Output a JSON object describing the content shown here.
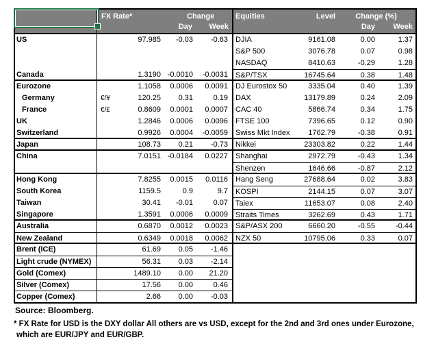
{
  "colors": {
    "header_bg": "#7f7f7f",
    "header_text": "#ffffff",
    "selection_green": "#217346",
    "grid_black": "#000000"
  },
  "fx_table": {
    "headers": {
      "rate": "FX Rate*",
      "change": "Change",
      "day": "Day",
      "week": "Week"
    },
    "groups": [
      [
        {
          "name": "US",
          "rate": "97.985",
          "day": "-0.03",
          "week": "-0.63"
        },
        {},
        {},
        {
          "name": "Canada",
          "rate": "1.3190",
          "day": "-0.0010",
          "week": "-0.0031"
        }
      ],
      [
        {
          "name": "Eurozone",
          "rate": "1.1058",
          "day": "0.0006",
          "week": "0.0091"
        },
        {
          "name": "Germany",
          "indent": true,
          "symbol": "€/¥",
          "rate": "120.25",
          "day": "0.31",
          "week": "0.19"
        },
        {
          "name": "France",
          "indent": true,
          "symbol": "€/£",
          "rate": "0.8609",
          "day": "0.0001",
          "week": "0.0007"
        },
        {
          "name": "UK",
          "rate": "1.2846",
          "day": "0.0006",
          "week": "0.0096"
        },
        {
          "name": "Switzerland",
          "rate": "0.9926",
          "day": "0.0004",
          "week": "-0.0059"
        }
      ],
      [
        {
          "name": "Japan",
          "rate": "108.73",
          "day": "0.21",
          "week": "-0.73"
        }
      ],
      [
        {
          "name": "China",
          "rate": "7.0151",
          "day": "-0.0184",
          "week": "0.0227"
        },
        {}
      ],
      [
        {
          "name": "Hong Kong",
          "rate": "7.8255",
          "day": "0.0015",
          "week": "0.0116"
        },
        {
          "name": "South Korea",
          "rate": "1159.5",
          "day": "0.9",
          "week": "9.7"
        },
        {
          "name": "Taiwan",
          "rate": "30.41",
          "day": "-0.01",
          "week": "0.07"
        },
        {
          "name": "Singapore",
          "rate": "1.3591",
          "day": "0.0006",
          "week": "0.0009"
        }
      ],
      [
        {
          "name": "Australia",
          "rate": "0.6870",
          "day": "0.0012",
          "week": "0.0023"
        },
        {
          "name": "New Zealand",
          "divider": true,
          "rate": "0.6349",
          "day": "0.0018",
          "week": "0.0062"
        }
      ],
      [
        {
          "name": "Brent (ICE)",
          "rate": "61.69",
          "day": "0.05",
          "week": "-1.46"
        },
        {
          "name": "Light crude (NYMEX)",
          "divider": true,
          "rate": "56.31",
          "day": "0.03",
          "week": "-2.14"
        },
        {
          "name": "Gold (Comex)",
          "divider": true,
          "rate": "1489.10",
          "day": "0.00",
          "week": "21.20"
        },
        {
          "name": "Silver (Comex)",
          "divider": true,
          "rate": "17.56",
          "day": "0.00",
          "week": "0.46"
        },
        {
          "name": "Copper (Comex)",
          "divider": true,
          "rate": "2.66",
          "day": "0.00",
          "week": "-0.03"
        }
      ]
    ]
  },
  "equities_table": {
    "headers": {
      "name": "Equities",
      "level": "Level",
      "change": "Change (%)",
      "day": "Day",
      "week": "Week"
    },
    "groups": [
      [
        {
          "name": "DJIA",
          "level": "9161.08",
          "day": "0.00",
          "week": "1.37"
        },
        {
          "name": "S&P 500",
          "level": "3076.78",
          "day": "0.07",
          "week": "0.98"
        },
        {
          "name": "NASDAQ",
          "level": "8410.63",
          "day": "-0.29",
          "week": "1.28"
        },
        {
          "name": "S&P/TSX",
          "divider": true,
          "level": "16745.64",
          "day": "0.38",
          "week": "1.48"
        }
      ],
      [
        {
          "name": "DJ Eurostox 50",
          "level": "3335.04",
          "day": "0.40",
          "week": "1.39"
        },
        {
          "name": "DAX",
          "level": "13179.89",
          "day": "0.24",
          "week": "2.09"
        },
        {
          "name": "CAC 40",
          "level": "5866.74",
          "day": "0.34",
          "week": "1.75"
        },
        {
          "name": "FTSE 100",
          "level": "7396.65",
          "day": "0.12",
          "week": "0.90"
        },
        {
          "name": "Swiss Mkt Index",
          "level": "1762.79",
          "day": "-0.38",
          "week": "0.91"
        }
      ],
      [
        {
          "name": "Nikkei",
          "level": "23303.82",
          "day": "0.22",
          "week": "1.44"
        }
      ],
      [
        {
          "name": "Shanghai",
          "level": "2972.79",
          "day": "-0.43",
          "week": "1.34"
        },
        {
          "name": "Shenzen",
          "divider": true,
          "level": "1646.66",
          "day": "-0.87",
          "week": "2.12"
        }
      ],
      [
        {
          "name": "Hang Seng",
          "level": "27688.64",
          "day": "0.02",
          "week": "3.83"
        },
        {
          "name": "KOSPI",
          "divider": true,
          "level": "2144.15",
          "day": "0.07",
          "week": "3.07"
        },
        {
          "name": "Taiex",
          "divider": true,
          "level": "11653.07",
          "day": "0.08",
          "week": "2.40"
        },
        {
          "name": "Straits Times",
          "divider": true,
          "level": "3262.69",
          "day": "0.43",
          "week": "1.71"
        }
      ],
      [
        {
          "name": "S&P/ASX 200",
          "level": "6660.20",
          "day": "-0.55",
          "week": "-0.44"
        },
        {
          "name": "NZX 50",
          "divider": true,
          "level": "10795.06",
          "day": "0.33",
          "week": "0.07"
        }
      ],
      [
        {},
        {},
        {},
        {},
        {}
      ]
    ]
  },
  "footer": {
    "source": "Source:  Bloomberg.",
    "footnote_line1": "* FX Rate for USD is the DXY dollar  All others are vs USD, except for the 2nd and 3rd ones under Eurozone,",
    "footnote_line2": "which are EUR/JPY and EUR/GBP."
  }
}
